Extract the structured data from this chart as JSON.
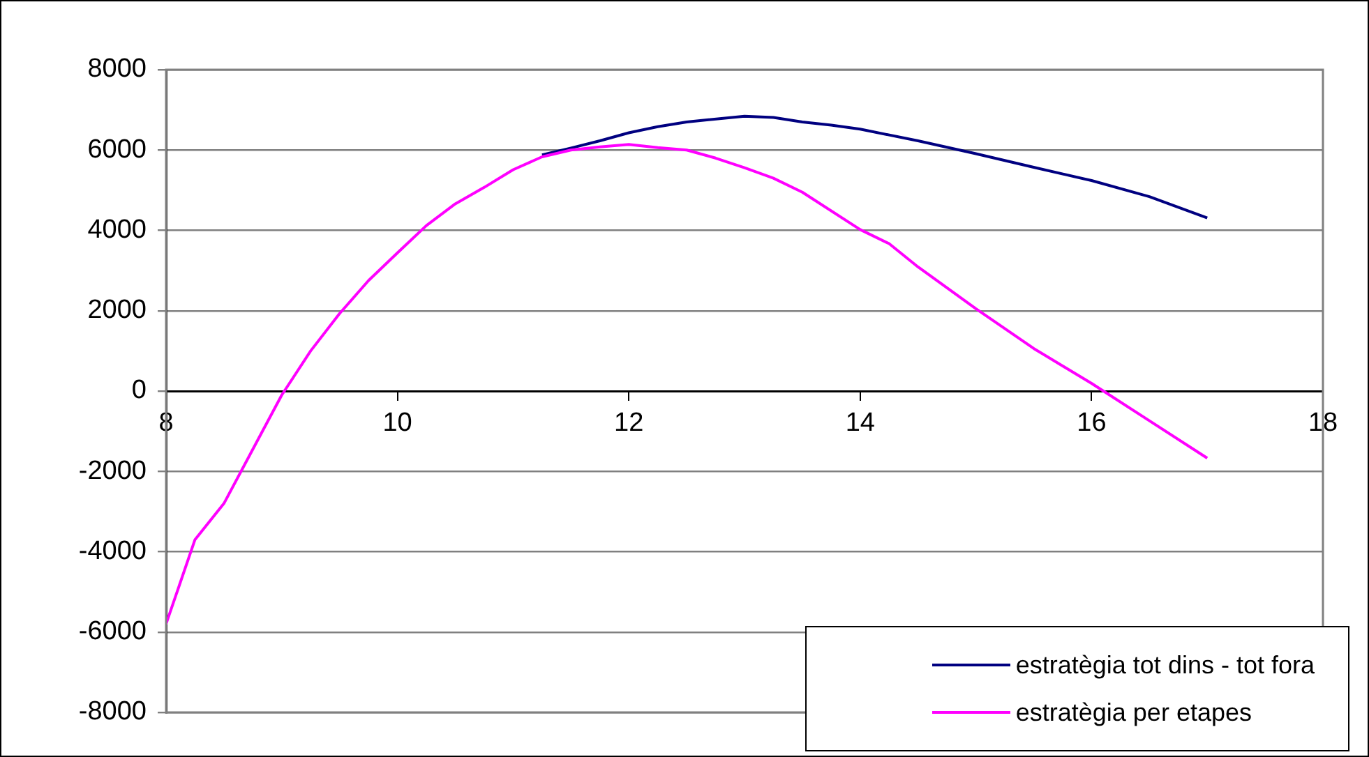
{
  "chart_data": {
    "type": "line",
    "xlim": [
      8,
      18
    ],
    "xticks": [
      8,
      10,
      12,
      14,
      16,
      18
    ],
    "ylim": [
      -8000,
      8000
    ],
    "yticks": [
      -8000,
      -6000,
      -4000,
      -2000,
      0,
      2000,
      4000,
      6000,
      8000
    ],
    "grid": "y",
    "legend": "bottom right",
    "marker": "none",
    "line_style": "solid",
    "series": [
      {
        "name": "estratègia tot dins - tot fora",
        "color": "#000080",
        "x": [
          11.25,
          11.5,
          11.75,
          12,
          12.25,
          12.5,
          13,
          13.25,
          13.5,
          13.75,
          14,
          14.5,
          15,
          15.5,
          16,
          16.5,
          17
        ],
        "values": [
          5880,
          6050,
          6230,
          6430,
          6580,
          6700,
          6840,
          6810,
          6700,
          6620,
          6520,
          6230,
          5910,
          5570,
          5240,
          4840,
          4310
        ]
      },
      {
        "name": "estratègia per etapes",
        "color": "#ff00ff",
        "x": [
          8,
          8.25,
          8.5,
          8.75,
          9,
          9.25,
          9.5,
          9.75,
          10,
          10.25,
          10.5,
          10.75,
          11,
          11.25,
          11.5,
          11.75,
          12,
          12.25,
          12.5,
          12.75,
          13,
          13.25,
          13.5,
          14,
          14.25,
          14.5,
          15,
          15.5,
          16,
          16.5,
          17
        ],
        "values": [
          -5800,
          -3700,
          -2800,
          -1450,
          -100,
          1000,
          1930,
          2750,
          3440,
          4120,
          4660,
          5070,
          5510,
          5830,
          6000,
          6080,
          6140,
          6060,
          6000,
          5800,
          5560,
          5300,
          4950,
          4020,
          3670,
          3090,
          2050,
          1060,
          190,
          -740,
          -1670
        ]
      }
    ]
  }
}
